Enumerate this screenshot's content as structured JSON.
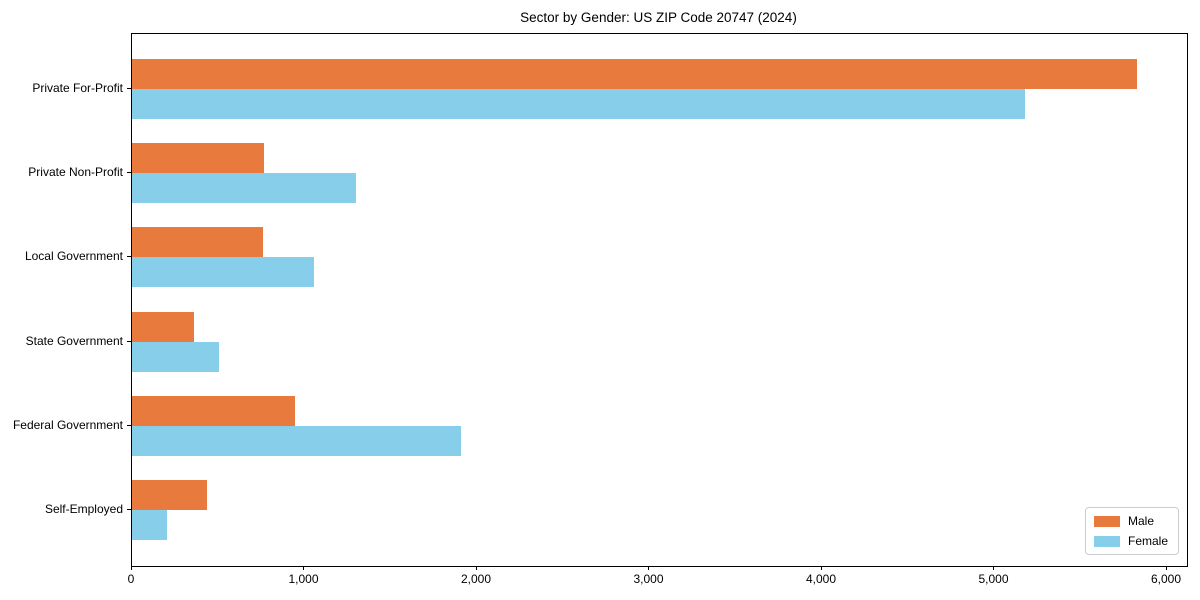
{
  "title": "Sector by Gender: US ZIP Code 20747 (2024)",
  "chart_data": {
    "type": "bar",
    "orientation": "horizontal",
    "title": "Sector by Gender: US ZIP Code 20747 (2024)",
    "categories": [
      "Private For-Profit",
      "Private Non-Profit",
      "Local Government",
      "State Government",
      "Federal Government",
      "Self-Employed"
    ],
    "series": [
      {
        "name": "Male",
        "color": "#E87A3D",
        "values": [
          5825,
          765,
          760,
          360,
          945,
          435
        ]
      },
      {
        "name": "Female",
        "color": "#87CEEB",
        "values": [
          5175,
          1300,
          1055,
          505,
          1905,
          205
        ]
      }
    ],
    "xlabel": "",
    "ylabel": "",
    "xlim": [
      0,
      6116
    ],
    "x_ticks": [
      0,
      1000,
      2000,
      3000,
      4000,
      5000,
      6000
    ],
    "x_tick_labels": [
      "0",
      "1,000",
      "2,000",
      "3,000",
      "4,000",
      "5,000",
      "6,000"
    ],
    "grid": false,
    "legend": {
      "position": "lower right",
      "entries": [
        "Male",
        "Female"
      ]
    },
    "axis_color": "#000000",
    "background_color": "#ffffff"
  }
}
